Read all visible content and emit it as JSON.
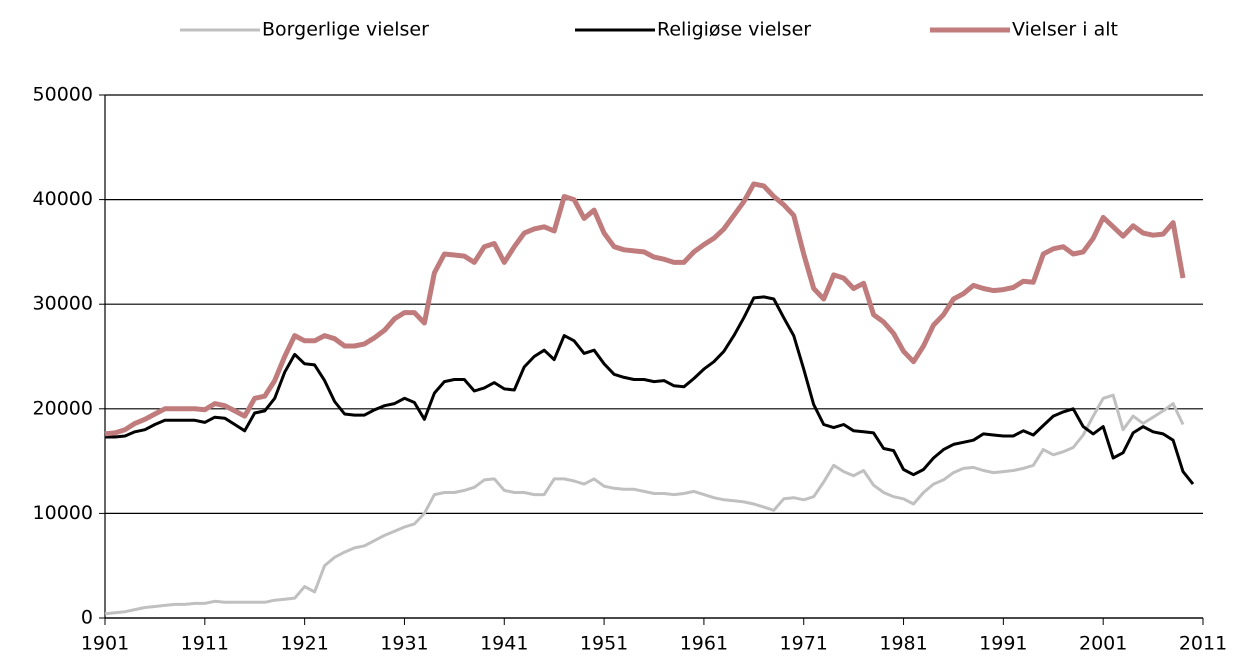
{
  "chart_data": {
    "type": "line",
    "x": [
      1901,
      1902,
      1903,
      1904,
      1905,
      1906,
      1907,
      1908,
      1909,
      1910,
      1911,
      1912,
      1913,
      1914,
      1915,
      1916,
      1917,
      1918,
      1919,
      1920,
      1921,
      1922,
      1923,
      1924,
      1925,
      1926,
      1927,
      1928,
      1929,
      1930,
      1931,
      1932,
      1933,
      1934,
      1935,
      1936,
      1937,
      1938,
      1939,
      1940,
      1941,
      1942,
      1943,
      1944,
      1945,
      1946,
      1947,
      1948,
      1949,
      1950,
      1951,
      1952,
      1953,
      1954,
      1955,
      1956,
      1957,
      1958,
      1959,
      1960,
      1961,
      1962,
      1963,
      1964,
      1965,
      1966,
      1967,
      1968,
      1969,
      1970,
      1971,
      1972,
      1973,
      1974,
      1975,
      1976,
      1977,
      1978,
      1979,
      1980,
      1981,
      1982,
      1983,
      1984,
      1985,
      1986,
      1987,
      1988,
      1989,
      1990,
      1991,
      1992,
      1993,
      1994,
      1995,
      1996,
      1997,
      1998,
      1999,
      2000,
      2001,
      2002,
      2003,
      2004,
      2005,
      2006,
      2007,
      2008,
      2009,
      2010
    ],
    "series": [
      {
        "name": "Borgerlige vielser",
        "color": "#c0c0c0",
        "values": [
          400,
          500,
          600,
          800,
          1000,
          1100,
          1200,
          1300,
          1300,
          1400,
          1400,
          1600,
          1500,
          1500,
          1500,
          1500,
          1500,
          1700,
          1800,
          1900,
          3000,
          2500,
          5000,
          5800,
          6300,
          6700,
          6900,
          7400,
          7900,
          8300,
          8700,
          9000,
          10000,
          11800,
          12000,
          12000,
          12200,
          12500,
          13200,
          13300,
          12200,
          12000,
          12000,
          11800,
          11800,
          13300,
          13300,
          13100,
          12800,
          13300,
          12600,
          12400,
          12300,
          12300,
          12100,
          11900,
          11900,
          11800,
          11900,
          12100,
          11800,
          11500,
          11300,
          11200,
          11100,
          10900,
          10600,
          10300,
          11400,
          11500,
          11300,
          11600,
          13000,
          14600,
          14000,
          13600,
          14100,
          12700,
          12000,
          11600,
          11400,
          10900,
          12000,
          12800,
          13200,
          13900,
          14300,
          14400,
          14100,
          13900,
          14000,
          14100,
          14300,
          14600,
          16100,
          15600,
          15900,
          16300,
          17500,
          19300,
          21000,
          21300,
          18000,
          19300,
          18600,
          19200,
          19800,
          20500,
          18500,
          null
        ]
      },
      {
        "name": "Religiøse vielser",
        "color": "#000000",
        "values": [
          17300,
          17300,
          17400,
          17800,
          18000,
          18500,
          18900,
          18900,
          18900,
          18900,
          18700,
          19200,
          19100,
          18500,
          17900,
          19600,
          19800,
          21000,
          23500,
          25200,
          24300,
          24200,
          22700,
          20700,
          19500,
          19400,
          19400,
          19900,
          20300,
          20500,
          21000,
          20600,
          19000,
          21500,
          22600,
          22800,
          22800,
          21700,
          22000,
          22500,
          21900,
          21800,
          24000,
          25000,
          25600,
          24700,
          27000,
          26500,
          25300,
          25600,
          24300,
          23300,
          23000,
          22800,
          22800,
          22600,
          22700,
          22200,
          22100,
          22900,
          23800,
          24500,
          25500,
          27000,
          28700,
          30600,
          30700,
          30500,
          28700,
          27000,
          23800,
          20400,
          18500,
          18200,
          18500,
          17900,
          17800,
          17700,
          16200,
          16000,
          14200,
          13700,
          14200,
          15300,
          16100,
          16600,
          16800,
          17000,
          17600,
          17500,
          17400,
          17400,
          17900,
          17500,
          18400,
          19300,
          19700,
          20000,
          18300,
          17600,
          18300,
          15300,
          15800,
          17700,
          18300,
          17800,
          17600,
          17000,
          14000,
          12800
        ]
      },
      {
        "name": "Vielser i alt",
        "color": "#c07c7c",
        "values": [
          17600,
          17700,
          18000,
          18600,
          19000,
          19500,
          20000,
          20000,
          20000,
          20000,
          19900,
          20500,
          20300,
          19800,
          19300,
          21000,
          21200,
          22700,
          25000,
          27000,
          26500,
          26500,
          27000,
          26700,
          26000,
          26000,
          26200,
          26800,
          27500,
          28600,
          29200,
          29200,
          28200,
          33000,
          34800,
          34700,
          34600,
          34000,
          35500,
          35800,
          34000,
          35500,
          36800,
          37200,
          37400,
          37000,
          40300,
          40000,
          38200,
          39000,
          36800,
          35500,
          35200,
          35100,
          35000,
          34500,
          34300,
          34000,
          34000,
          35000,
          35700,
          36300,
          37200,
          38500,
          39800,
          41500,
          41300,
          40300,
          39500,
          38500,
          34800,
          31500,
          30500,
          32800,
          32500,
          31500,
          32000,
          29000,
          28300,
          27200,
          25500,
          24500,
          26000,
          28000,
          29000,
          30500,
          31000,
          31800,
          31500,
          31300,
          31400,
          31600,
          32200,
          32100,
          34800,
          35300,
          35500,
          34800,
          35000,
          36300,
          38300,
          37400,
          36500,
          37500,
          36800,
          36600,
          36700,
          37800,
          32500,
          null
        ]
      }
    ],
    "xlim": [
      1901,
      2011
    ],
    "xticks": [
      1901,
      1911,
      1921,
      1931,
      1941,
      1951,
      1961,
      1971,
      1981,
      1991,
      2001,
      2011
    ],
    "ylim": [
      0,
      50000
    ],
    "yticks": [
      0,
      10000,
      20000,
      30000,
      40000,
      50000
    ],
    "grid": true,
    "legend": "top"
  }
}
